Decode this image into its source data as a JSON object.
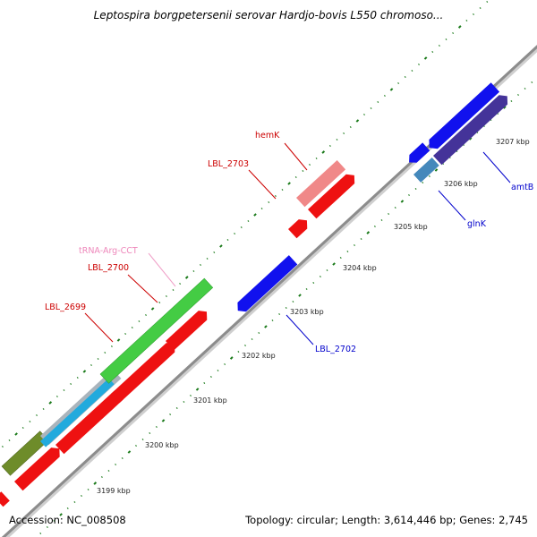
{
  "title": "Leptospira borgpetersenii serovar Hardjo-bovis L550 chromoso...",
  "accession": "Accession: NC_008508",
  "topology": "Topology: circular; Length: 3,614,446 bp; Genes: 2,745",
  "ruler_labels": [
    "3199 kbp",
    "3200 kbp",
    "3201 kbp",
    "3202 kbp",
    "3203 kbp",
    "3204 kbp",
    "3205 kbp",
    "3206 kbp",
    "3207 kbp"
  ],
  "gene_labels": {
    "hemK": "hemK",
    "lbl2703": "LBL_2703",
    "trna": "tRNA-Arg-CCT",
    "lbl2700": "LBL_2700",
    "lbl2699": "LBL_2699",
    "lbl2702": "LBL_2702",
    "glnK": "glnK",
    "amtB": "amtB"
  },
  "colors": {
    "backbone": "#8c8c8c",
    "tick": "#1a7a1a",
    "red": "#ee1111",
    "pink": "#f08888",
    "green": "#44cc44",
    "olive": "#6e8c2a",
    "cyan": "#22aadd",
    "gray": "#aab4bc",
    "blue": "#1111ee",
    "darkblue": "#443399",
    "steelblue": "#4488bb",
    "label_red": "#cc0000",
    "label_pink": "#ee88bb",
    "label_blue": "#0000cc"
  }
}
